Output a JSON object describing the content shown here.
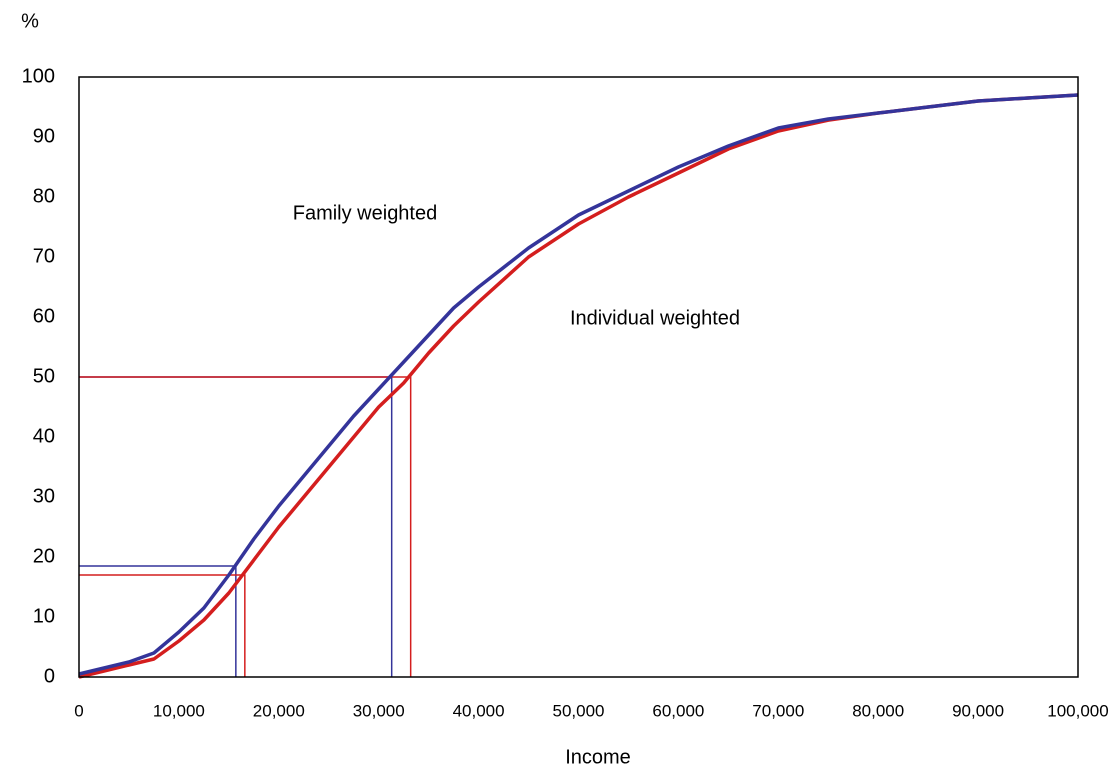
{
  "chart_data": {
    "type": "line",
    "y_axis_label": "%",
    "x_axis_label": "Income",
    "x": [
      0,
      2500,
      5000,
      7500,
      10000,
      12500,
      15000,
      17500,
      20000,
      22500,
      25000,
      27500,
      30000,
      32500,
      35000,
      37500,
      40000,
      45000,
      50000,
      55000,
      60000,
      65000,
      70000,
      75000,
      80000,
      85000,
      90000,
      95000,
      100000
    ],
    "series": [
      {
        "name": "Family weighted",
        "color": "#34349a",
        "values": [
          0.5,
          1.5,
          2.5,
          4,
          7.5,
          11.5,
          17,
          23,
          28.5,
          33.5,
          38.5,
          43.5,
          48,
          52.5,
          57,
          61.5,
          65,
          71.5,
          77,
          81,
          85,
          88.5,
          91.5,
          93,
          94,
          95,
          96,
          96.5,
          97
        ]
      },
      {
        "name": "Individual weighted",
        "color": "#d41e1e",
        "values": [
          0,
          1,
          2,
          3,
          6,
          9.5,
          14,
          19.5,
          25,
          30,
          35,
          40,
          45,
          49,
          54,
          58.5,
          62.5,
          70,
          75.5,
          80,
          84,
          88,
          91,
          92.8,
          94,
          95,
          96,
          96.5,
          97
        ]
      }
    ],
    "reference_lines": [
      {
        "color": "#34349a",
        "x": 15700,
        "y": 18.5
      },
      {
        "color": "#34349a",
        "x": 31300,
        "y": 50
      },
      {
        "color": "#d41e1e",
        "x": 16600,
        "y": 17
      },
      {
        "color": "#d41e1e",
        "x": 33200,
        "y": 50
      }
    ],
    "xlim": [
      0,
      100000
    ],
    "ylim": [
      0,
      100
    ],
    "xticks": [
      0,
      {
        "value": 10000,
        "label": "10,000"
      },
      {
        "value": 20000,
        "label": "20,000"
      },
      {
        "value": 30000,
        "label": "30,000"
      },
      {
        "value": 40000,
        "label": "40,000"
      },
      {
        "value": 50000,
        "label": "50,000"
      },
      {
        "value": 60000,
        "label": "60,000"
      },
      {
        "value": 70000,
        "label": "70,000"
      },
      {
        "value": 80000,
        "label": "80,000"
      },
      {
        "value": 90000,
        "label": "90,000"
      },
      {
        "value": 100000,
        "label": "100,000"
      }
    ],
    "yticks": [
      0,
      10,
      20,
      30,
      40,
      50,
      60,
      70,
      80,
      90,
      100
    ],
    "grid": false
  }
}
